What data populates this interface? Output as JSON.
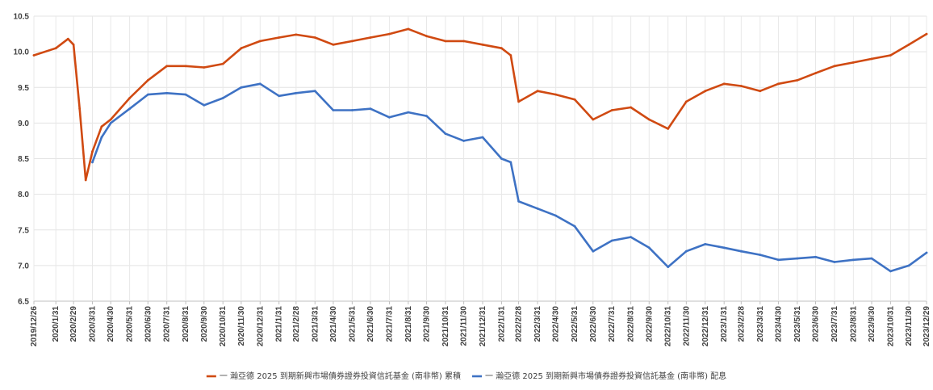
{
  "chart_data": {
    "type": "line",
    "title": "",
    "xlabel": "",
    "ylabel": "",
    "ylim": [
      6.5,
      10.5
    ],
    "yticks": [
      "6.5",
      "7.0",
      "7.5",
      "8.0",
      "8.5",
      "9.0",
      "9.5",
      "10.0",
      "10.5"
    ],
    "grid": true,
    "legend_position": "bottom",
    "x_tick_labels": [
      "2019/12/26",
      "2020/1/31",
      "2020/2/29",
      "2020/3/31",
      "2020/4/30",
      "2020/5/31",
      "2020/6/30",
      "2020/7/31",
      "2020/8/31",
      "2020/9/30",
      "2020/10/31",
      "2020/11/30",
      "2020/12/31",
      "2021/1/31",
      "2021/2/28",
      "2021/3/31",
      "2021/4/30",
      "2021/5/31",
      "2021/6/30",
      "2021/7/31",
      "2021/8/31",
      "2021/9/30",
      "2021/10/31",
      "2021/11/30",
      "2021/12/31",
      "2022/1/31",
      "2022/2/28",
      "2022/3/31",
      "2022/4/30",
      "2022/5/31",
      "2022/6/30",
      "2022/7/31",
      "2022/8/31",
      "2022/9/30",
      "2022/10/31",
      "2022/11/30",
      "2022/12/31",
      "2023/1/31",
      "2023/2/28",
      "2023/3/31",
      "2023/4/30",
      "2023/5/31",
      "2023/6/30",
      "2023/7/31",
      "2023/8/31",
      "2023/9/30",
      "2023/10/31",
      "2023/11/30",
      "2023/12/29"
    ],
    "series": [
      {
        "name": "一 瀚亞德 2025 到期新興市場債券證券投資信託基金 (南非幣) 累積",
        "color": "#d04a12",
        "x": [
          "2019/12/26",
          "2020/1/31",
          "2020/2/20",
          "2020/2/29",
          "2020/3/10",
          "2020/3/20",
          "2020/3/31",
          "2020/4/15",
          "2020/4/30",
          "2020/5/31",
          "2020/6/30",
          "2020/7/31",
          "2020/8/31",
          "2020/9/30",
          "2020/10/31",
          "2020/11/30",
          "2020/12/31",
          "2021/1/31",
          "2021/2/28",
          "2021/3/31",
          "2021/4/30",
          "2021/5/31",
          "2021/6/30",
          "2021/7/31",
          "2021/8/31",
          "2021/9/30",
          "2021/10/31",
          "2021/11/30",
          "2021/12/31",
          "2022/1/31",
          "2022/2/15",
          "2022/2/28",
          "2022/3/31",
          "2022/4/30",
          "2022/5/31",
          "2022/6/30",
          "2022/7/31",
          "2022/8/31",
          "2022/9/30",
          "2022/10/31",
          "2022/11/30",
          "2022/12/31",
          "2023/1/31",
          "2023/2/28",
          "2023/3/31",
          "2023/4/30",
          "2023/5/31",
          "2023/6/30",
          "2023/7/31",
          "2023/8/31",
          "2023/9/30",
          "2023/10/31",
          "2023/11/30",
          "2023/12/29"
        ],
        "values": [
          9.95,
          10.05,
          10.18,
          10.1,
          9.2,
          8.2,
          8.6,
          8.95,
          9.05,
          9.35,
          9.6,
          9.8,
          9.8,
          9.78,
          9.83,
          10.05,
          10.15,
          10.2,
          10.24,
          10.2,
          10.1,
          10.15,
          10.2,
          10.25,
          10.32,
          10.22,
          10.15,
          10.15,
          10.1,
          10.05,
          9.95,
          9.3,
          9.45,
          9.4,
          9.33,
          9.05,
          9.18,
          9.22,
          9.05,
          8.92,
          9.3,
          9.45,
          9.55,
          9.52,
          9.45,
          9.55,
          9.6,
          9.7,
          9.8,
          9.85,
          9.9,
          9.95,
          10.1,
          10.25
        ]
      },
      {
        "name": "一 瀚亞德 2025 到期新興市場債券證券投資信託基金 (南非幣) 配息",
        "color": "#3e72c4",
        "x": [
          "2020/3/31",
          "2020/4/15",
          "2020/4/30",
          "2020/5/31",
          "2020/6/30",
          "2020/7/31",
          "2020/8/31",
          "2020/9/30",
          "2020/10/31",
          "2020/11/30",
          "2020/12/31",
          "2021/1/31",
          "2021/2/28",
          "2021/3/31",
          "2021/4/30",
          "2021/5/31",
          "2021/6/30",
          "2021/7/31",
          "2021/8/31",
          "2021/9/30",
          "2021/10/31",
          "2021/11/30",
          "2021/12/31",
          "2022/1/31",
          "2022/2/15",
          "2022/2/28",
          "2022/3/31",
          "2022/4/30",
          "2022/5/31",
          "2022/6/30",
          "2022/7/31",
          "2022/8/31",
          "2022/9/30",
          "2022/10/31",
          "2022/11/30",
          "2022/12/31",
          "2023/1/31",
          "2023/2/28",
          "2023/3/31",
          "2023/4/30",
          "2023/5/31",
          "2023/6/30",
          "2023/7/31",
          "2023/8/31",
          "2023/9/30",
          "2023/10/31",
          "2023/11/30",
          "2023/12/29"
        ],
        "values": [
          8.45,
          8.8,
          9.0,
          9.2,
          9.4,
          9.42,
          9.4,
          9.25,
          9.35,
          9.5,
          9.55,
          9.38,
          9.42,
          9.45,
          9.18,
          9.18,
          9.2,
          9.08,
          9.15,
          9.1,
          8.85,
          8.75,
          8.8,
          8.5,
          8.45,
          7.9,
          7.8,
          7.7,
          7.55,
          7.2,
          7.35,
          7.4,
          7.25,
          6.98,
          7.2,
          7.3,
          7.25,
          7.2,
          7.15,
          7.08,
          7.1,
          7.12,
          7.05,
          7.08,
          7.1,
          6.92,
          7.0,
          7.18
        ]
      }
    ]
  }
}
